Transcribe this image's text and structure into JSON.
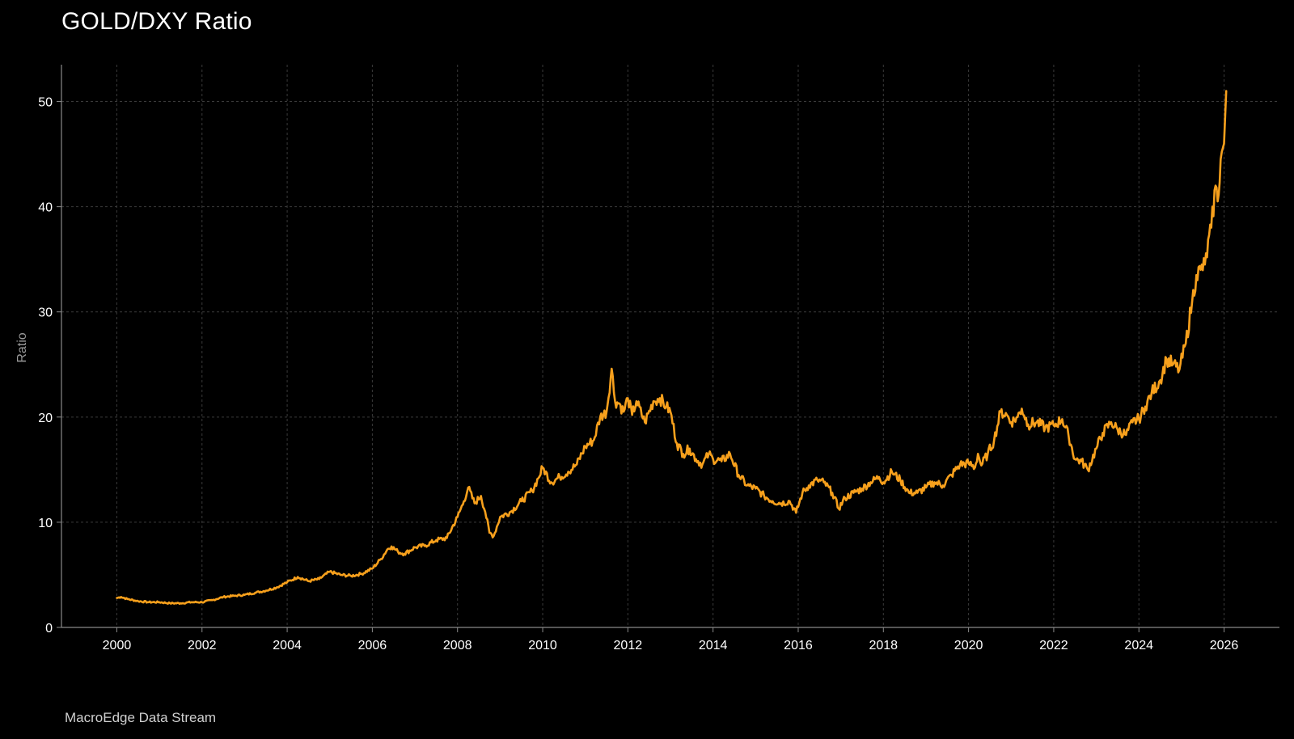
{
  "header": {
    "title": "GOLD/DXY Ratio"
  },
  "footer": {
    "source": "MacroEdge Data Stream"
  },
  "colors": {
    "background": "#000000",
    "line": "#f7a01c",
    "grid": "#3a3a3a",
    "axis": "#8a8a8a"
  },
  "chart_data": {
    "type": "line",
    "title": "GOLD/DXY Ratio",
    "xlabel": "",
    "ylabel": "Ratio",
    "xlim": [
      1998.7,
      2027.3
    ],
    "ylim": [
      0,
      53.5
    ],
    "grid": true,
    "x_ticks": [
      2000,
      2002,
      2004,
      2006,
      2008,
      2010,
      2012,
      2014,
      2016,
      2018,
      2020,
      2022,
      2024,
      2026
    ],
    "x_tick_labels": [
      "2000",
      "2002",
      "2004",
      "2006",
      "2008",
      "2010",
      "2012",
      "2014",
      "2016",
      "2018",
      "2020",
      "2022",
      "2024",
      "2026"
    ],
    "y_ticks": [
      0,
      10,
      20,
      30,
      40,
      50
    ],
    "y_tick_labels": [
      "0",
      "10",
      "20",
      "30",
      "40",
      "50"
    ],
    "series": [
      {
        "color": "#f7a01c",
        "x": [
          2000.0,
          2000.1,
          2000.25,
          2000.5,
          2000.75,
          2001.0,
          2001.25,
          2001.5,
          2001.75,
          2002.0,
          2002.25,
          2002.5,
          2002.75,
          2003.0,
          2003.25,
          2003.5,
          2003.75,
          2004.0,
          2004.25,
          2004.5,
          2004.75,
          2005.0,
          2005.25,
          2005.5,
          2005.75,
          2006.0,
          2006.2,
          2006.35,
          2006.45,
          2006.6,
          2006.75,
          2007.0,
          2007.25,
          2007.5,
          2007.75,
          2008.0,
          2008.15,
          2008.25,
          2008.4,
          2008.55,
          2008.65,
          2008.75,
          2008.85,
          2009.0,
          2009.25,
          2009.5,
          2009.75,
          2009.9,
          2010.0,
          2010.2,
          2010.4,
          2010.6,
          2010.8,
          2011.0,
          2011.2,
          2011.35,
          2011.5,
          2011.62,
          2011.7,
          2011.8,
          2011.9,
          2012.0,
          2012.1,
          2012.2,
          2012.4,
          2012.6,
          2012.75,
          2012.9,
          2013.0,
          2013.15,
          2013.3,
          2013.45,
          2013.6,
          2013.75,
          2013.9,
          2014.0,
          2014.2,
          2014.4,
          2014.6,
          2014.8,
          2015.0,
          2015.2,
          2015.4,
          2015.6,
          2015.8,
          2015.95,
          2016.1,
          2016.25,
          2016.45,
          2016.6,
          2016.8,
          2016.95,
          2017.1,
          2017.3,
          2017.5,
          2017.7,
          2017.9,
          2018.0,
          2018.2,
          2018.4,
          2018.6,
          2018.8,
          2019.0,
          2019.2,
          2019.4,
          2019.6,
          2019.8,
          2020.0,
          2020.15,
          2020.22,
          2020.3,
          2020.45,
          2020.6,
          2020.75,
          2020.9,
          2021.0,
          2021.15,
          2021.25,
          2021.4,
          2021.6,
          2021.8,
          2022.0,
          2022.2,
          2022.35,
          2022.5,
          2022.65,
          2022.8,
          2023.0,
          2023.15,
          2023.35,
          2023.5,
          2023.7,
          2023.85,
          2024.0,
          2024.15,
          2024.3,
          2024.5,
          2024.65,
          2024.8,
          2024.95,
          2025.1,
          2025.25,
          2025.35,
          2025.45,
          2025.55,
          2025.7,
          2025.8,
          2025.85,
          2025.92,
          2026.0,
          2026.05
        ],
        "y": [
          2.8,
          2.9,
          2.7,
          2.5,
          2.4,
          2.4,
          2.3,
          2.3,
          2.4,
          2.4,
          2.6,
          2.9,
          3.0,
          3.1,
          3.3,
          3.5,
          3.8,
          4.3,
          4.8,
          4.4,
          4.6,
          5.3,
          5.0,
          4.9,
          5.1,
          5.6,
          6.5,
          7.4,
          7.7,
          7.2,
          7.0,
          7.6,
          7.8,
          8.3,
          8.5,
          10.5,
          12.0,
          13.3,
          11.8,
          12.5,
          11.0,
          9.0,
          8.7,
          10.5,
          11.0,
          12.0,
          13.0,
          14.2,
          15.2,
          13.8,
          14.3,
          14.8,
          15.5,
          17.2,
          17.8,
          20.0,
          20.5,
          24.6,
          21.5,
          21.3,
          20.5,
          21.8,
          20.2,
          21.5,
          19.5,
          21.5,
          21.8,
          21.0,
          20.5,
          17.5,
          16.5,
          17.0,
          16.0,
          15.5,
          16.5,
          16.0,
          15.8,
          16.5,
          14.5,
          13.5,
          13.2,
          12.5,
          12.0,
          11.8,
          12.0,
          10.9,
          12.8,
          13.5,
          14.0,
          13.8,
          12.8,
          11.3,
          12.3,
          12.8,
          13.2,
          13.8,
          14.3,
          13.8,
          14.8,
          14.0,
          12.8,
          12.8,
          13.3,
          13.8,
          13.5,
          14.5,
          15.5,
          15.6,
          15.2,
          16.5,
          15.4,
          16.5,
          17.8,
          20.5,
          20.2,
          19.5,
          20.0,
          20.8,
          19.3,
          19.5,
          19.0,
          19.2,
          19.8,
          18.2,
          16.0,
          15.8,
          15.0,
          17.0,
          18.5,
          19.5,
          18.8,
          18.3,
          19.5,
          19.8,
          21.0,
          22.3,
          23.5,
          25.5,
          25.0,
          24.5,
          27.0,
          31.0,
          33.5,
          34.0,
          34.5,
          38.0,
          42.0,
          40.5,
          44.5,
          46.0,
          51.0
        ]
      }
    ]
  }
}
